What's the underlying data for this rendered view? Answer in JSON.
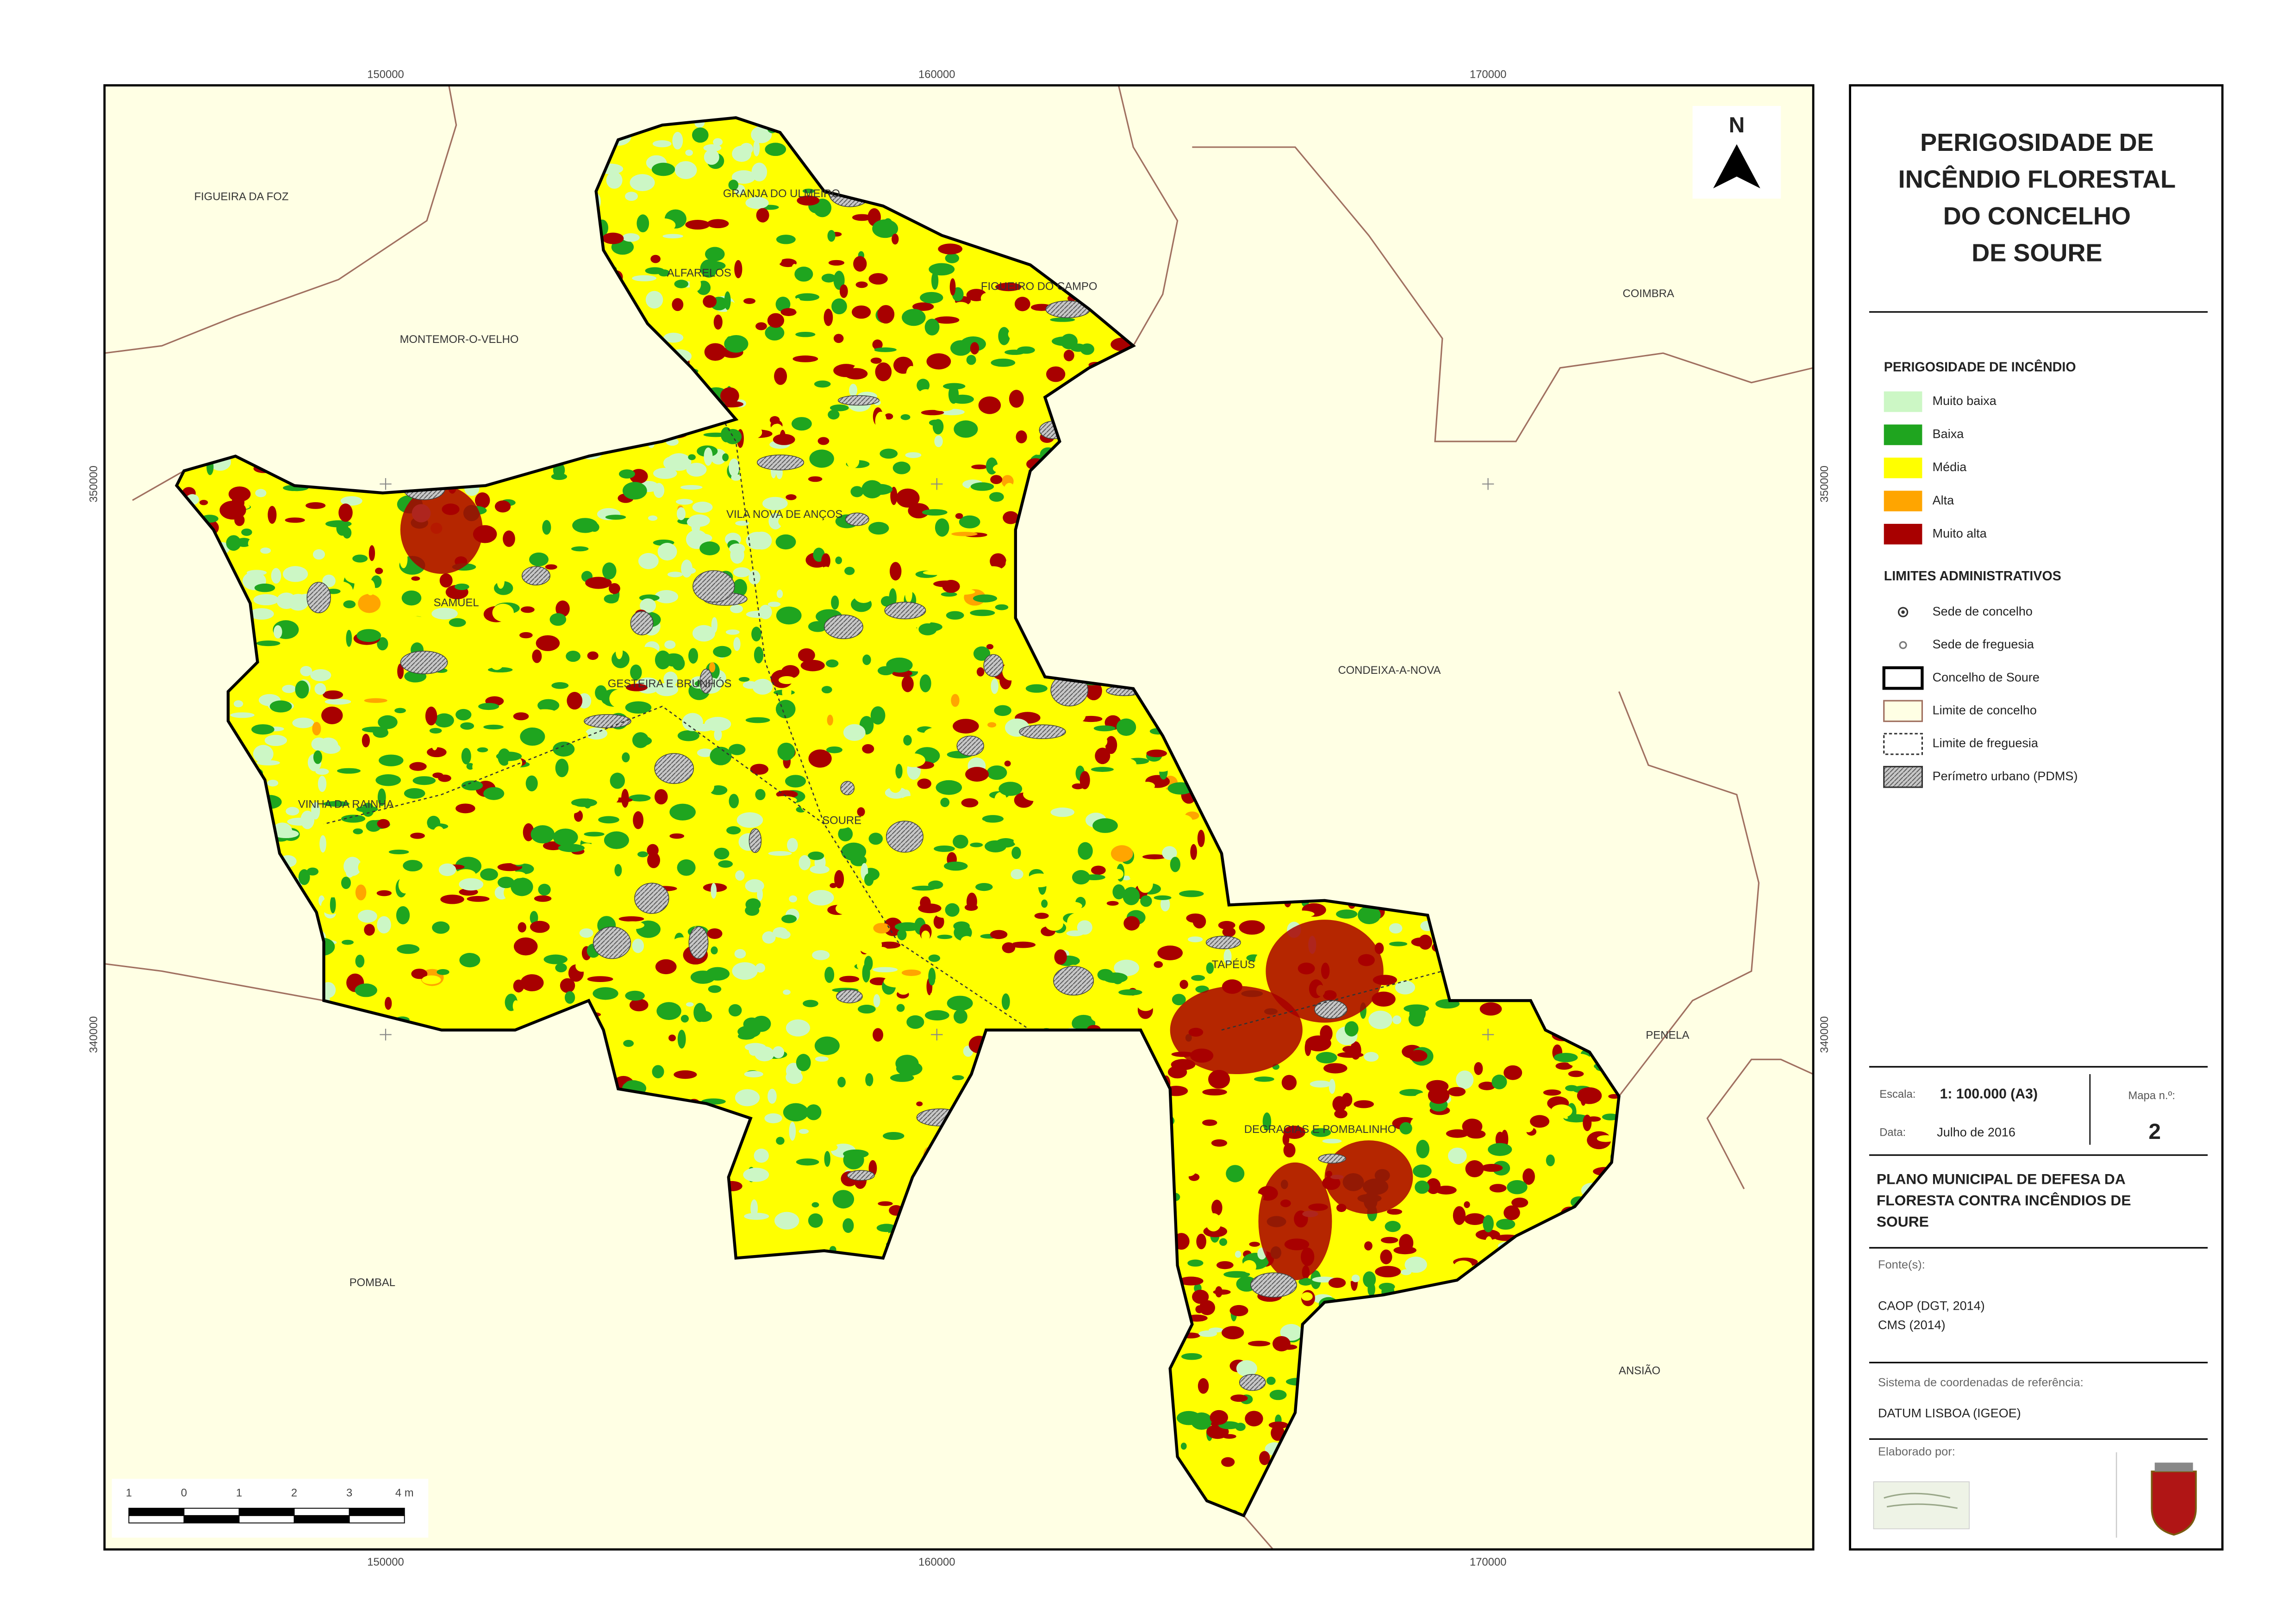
{
  "map": {
    "grid": {
      "xlim": [
        144900,
        175900
      ],
      "ylim": [
        330650,
        357240
      ],
      "xticks": [
        150000,
        160000,
        170000
      ],
      "yticks": [
        340000,
        350000
      ]
    },
    "places": [
      "FIGUEIRA DA FOZ",
      "MONTEMOR-O-VELHO",
      "GRANJA DO ULMEIRO",
      "ALFARELOS",
      "FIGUEIRO DO CAMPO",
      "COIMBRA",
      "VILA NOVA DE ANÇOS",
      "SAMUEL",
      "GESTEIRA E BRUNHÓS",
      "CONDEIXA-A-NOVA",
      "VINHA DA RAINHA",
      "SOURE",
      "TAPÉUS",
      "PENELA",
      "DEGRACIAS E POMBALINHO",
      "POMBAL",
      "ANSIÃO"
    ],
    "north": "N",
    "scale_bar": {
      "ticks": [
        {
          "value": -1,
          "label": "1"
        },
        0,
        1,
        2,
        3,
        {
          "value": 4,
          "label": "4 m"
        }
      ]
    }
  },
  "panel": {
    "title": [
      "PERIGOSIDADE DE",
      "INCÊNDIO FLORESTAL",
      "DO CONCELHO",
      "DE SOURE"
    ],
    "hazard_legend": {
      "title": "PERIGOSIDADE DE INCÊNDIO",
      "items": [
        {
          "name": "Muito baixa",
          "color": "#ccf7c5"
        },
        {
          "name": "Baixa",
          "color": "#1fa51f"
        },
        {
          "name": "Média",
          "color": "#ffff00"
        },
        {
          "name": "Alta",
          "color": "#ffa500"
        },
        {
          "name": "Muito alta",
          "color": "#a80000"
        }
      ]
    },
    "admin_legend": {
      "title": "LIMITES ADMINISTRATIVOS",
      "items": [
        "Sede de concelho",
        "Sede de freguesia",
        "Concelho de Soure",
        "Limite de concelho",
        "Limite de freguesia",
        "Perímetro urbano (PDMS)"
      ]
    },
    "scale_label": "Escala:",
    "scale": "1: 100.000 (A3)",
    "map_no_label": "Mapa n.º:",
    "map_no": 2,
    "date_label": "Data:",
    "date": "Julho de 2016",
    "plan": [
      "PLANO MUNICIPAL DE DEFESA DA",
      "FLORESTA CONTRA INCÊNDIOS DE",
      "SOURE"
    ],
    "sources_label": "Fonte(s):",
    "sources": [
      "CAOP (DGT, 2014)",
      "CMS (2014)"
    ],
    "crs_label": "Sistema de coordenadas de referência:",
    "crs": "DATUM LISBOA (IGEOE)",
    "author_label": "Elaborado por:"
  }
}
